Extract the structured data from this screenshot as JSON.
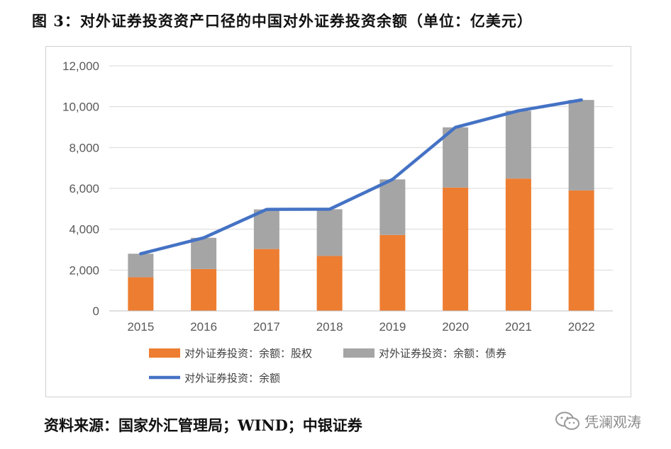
{
  "title": "图 3：对外证券投资资产口径的中国对外证券投资余额（单位：亿美元）",
  "source": "资料来源：国家外汇管理局；WIND；中银证券",
  "watermark": {
    "text": "凭澜观涛",
    "icon": "wechat-icon"
  },
  "chart_data": {
    "type": "bar",
    "stacked": true,
    "categories": [
      "2015",
      "2016",
      "2017",
      "2018",
      "2019",
      "2020",
      "2021",
      "2022"
    ],
    "series": [
      {
        "name": "对外证券投资：余额：股权",
        "kind": "bar",
        "color": "#ED7D31",
        "values": [
          1650,
          2050,
          3030,
          2690,
          3720,
          6040,
          6480,
          5900
        ]
      },
      {
        "name": "对外证券投资：余额：债券",
        "kind": "bar",
        "color": "#A5A5A5",
        "values": [
          1150,
          1530,
          1940,
          2290,
          2720,
          2950,
          3320,
          4430
        ]
      },
      {
        "name": "对外证券投资：余额",
        "kind": "line",
        "color": "#4472C4",
        "values": [
          2800,
          3580,
          4970,
          4980,
          6440,
          8990,
          9800,
          10330
        ]
      }
    ],
    "ylim": [
      0,
      12000
    ],
    "yticks": [
      0,
      2000,
      4000,
      6000,
      8000,
      10000,
      12000
    ],
    "ytick_labels": [
      "0",
      "2,000",
      "4,000",
      "6,000",
      "8,000",
      "10,000",
      "12,000"
    ],
    "grid": true,
    "legend": "bottom",
    "xlabel": "",
    "ylabel": ""
  }
}
